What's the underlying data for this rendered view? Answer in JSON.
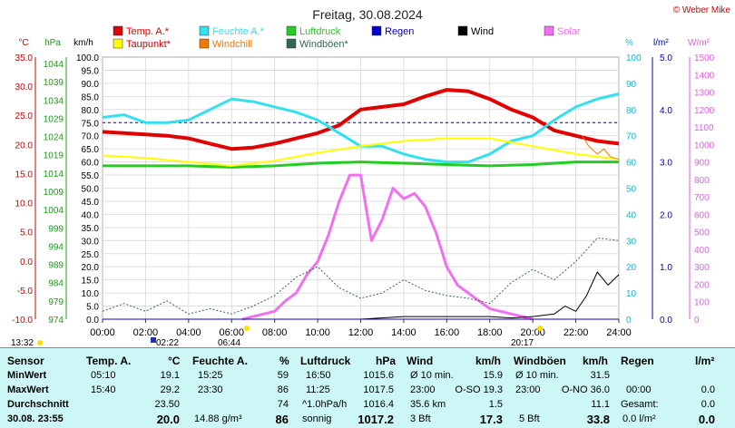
{
  "header": {
    "title": "Freitag, 30.08.2024",
    "credit": "© Weber Mike"
  },
  "legend": [
    {
      "label": "Temp. A.*",
      "color": "#e00000"
    },
    {
      "label": "Feuchte A.*",
      "color": "#33e0f0"
    },
    {
      "label": "Luftdruck",
      "color": "#22cc22"
    },
    {
      "label": "Regen",
      "color": "#0000cc"
    },
    {
      "label": "Wind",
      "color": "#000000"
    },
    {
      "label": "Solar",
      "color": "#f070f0"
    },
    {
      "label": "Taupunkt*",
      "color": "#ffff00"
    },
    {
      "label": "Windchill",
      "color": "#f07800"
    },
    {
      "label": "Windböen*",
      "color": "#336655"
    }
  ],
  "axes": {
    "unit_temp": "°C",
    "unit_hpa": "hPa",
    "unit_kmh": "km/h",
    "unit_pct": "%",
    "unit_rain": "l/m²",
    "unit_solar": "W/m²",
    "temp_ticks": [
      "35.0",
      "30.0",
      "25.0",
      "20.0",
      "15.0",
      "10.0",
      "5.0",
      "0.0",
      "-5.0",
      "-10.0"
    ],
    "hpa_ticks": [
      "1044",
      "1039",
      "1034",
      "1029",
      "1024",
      "1019",
      "1014",
      "1009",
      "1004",
      "999",
      "994",
      "989",
      "984",
      "979",
      "974"
    ],
    "kmh_ticks": [
      "100.0",
      "95.0",
      "90.0",
      "85.0",
      "80.0",
      "75.0",
      "70.0",
      "65.0",
      "60.0",
      "55.0",
      "50.0",
      "45.0",
      "40.0",
      "35.0",
      "30.0",
      "25.0",
      "20.0",
      "15.0",
      "10.0",
      "5.0",
      "0.0"
    ],
    "pct_ticks": [
      "100",
      "90",
      "80",
      "70",
      "60",
      "50",
      "40",
      "30",
      "20",
      "10",
      "0"
    ],
    "rain_ticks": [
      "5.0",
      "4.0",
      "3.0",
      "2.0",
      "1.0",
      "0.0"
    ],
    "solar_ticks": [
      "1500",
      "1400",
      "1300",
      "1200",
      "1100",
      "1000",
      "900",
      "800",
      "700",
      "600",
      "500",
      "400",
      "300",
      "200",
      "100",
      "0"
    ],
    "time_ticks": [
      "00:00",
      "02:00",
      "04:00",
      "06:00",
      "08:00",
      "10:00",
      "12:00",
      "14:00",
      "16:00",
      "18:00",
      "20:00",
      "22:00",
      "24:00"
    ]
  },
  "sun": {
    "moonrise": "13:32",
    "moonset": "02:22",
    "sunrise": "06:44",
    "sunset": "20:17"
  },
  "chart_data": {
    "type": "line",
    "x_unit": "hours",
    "xlim": [
      0,
      24
    ],
    "series": [
      {
        "name": "Temp. A.*",
        "axis": "kmh",
        "color": "#e00000",
        "width": 4,
        "x": [
          0,
          1,
          2,
          3,
          4,
          5,
          6,
          7,
          8,
          9,
          10,
          11,
          12,
          13,
          14,
          15,
          16,
          17,
          18,
          19,
          20,
          21,
          22,
          23,
          24
        ],
        "y": [
          71.5,
          71,
          70.5,
          70,
          69,
          67,
          65,
          65.5,
          67,
          69,
          71,
          74,
          80,
          81,
          82,
          85,
          87.5,
          87,
          84,
          80,
          77,
          72,
          70,
          68,
          67
        ]
      },
      {
        "name": "Feuchte A.*",
        "axis": "kmh",
        "color": "#33e0f0",
        "width": 3,
        "x": [
          0,
          1,
          2,
          3,
          4,
          5,
          6,
          7,
          8,
          9,
          10,
          11,
          12,
          13,
          14,
          15,
          16,
          17,
          18,
          19,
          20,
          21,
          22,
          23,
          24
        ],
        "y": [
          77,
          78,
          75,
          75,
          76,
          80,
          84,
          83,
          81,
          79,
          76,
          71,
          66,
          66,
          63,
          61,
          60,
          60,
          63,
          68,
          70,
          76,
          81,
          84,
          86
        ]
      },
      {
        "name": "Luftdruck",
        "axis": "kmh",
        "color": "#22cc22",
        "width": 3,
        "x": [
          0,
          2,
          4,
          6,
          8,
          10,
          12,
          14,
          16,
          18,
          20,
          22,
          24
        ],
        "y": [
          58.5,
          58.5,
          58.5,
          58,
          58.5,
          59.5,
          60,
          59.5,
          59,
          58.5,
          59,
          60,
          60
        ]
      },
      {
        "name": "Taupunkt*",
        "axis": "kmh",
        "color": "#ffff00",
        "width": 2,
        "x": [
          0,
          2,
          4,
          6,
          8,
          10,
          12,
          14,
          16,
          18,
          20,
          22,
          24
        ],
        "y": [
          62.5,
          61.5,
          60,
          58.5,
          60.5,
          63.5,
          66,
          68,
          69,
          69,
          66,
          63,
          61
        ]
      },
      {
        "name": "Windchill",
        "axis": "kmh",
        "color": "#f07800",
        "width": 1,
        "x": [
          22.3,
          22.6,
          23,
          23.3,
          23.6,
          24
        ],
        "y": [
          70,
          66,
          63,
          65,
          62,
          61
        ]
      },
      {
        "name": "Solar",
        "axis": "kmh",
        "color": "#f070f0",
        "width": 3,
        "x": [
          6.5,
          7,
          7.5,
          8,
          8.5,
          9,
          9.5,
          10,
          10.5,
          11,
          11.5,
          12,
          12.5,
          13,
          13.5,
          14,
          14.5,
          15,
          15.5,
          16,
          16.5,
          17,
          17.5,
          18,
          18.5,
          19,
          19.5,
          20
        ],
        "y": [
          0,
          1,
          2,
          3,
          7,
          10,
          17,
          22,
          32,
          45,
          55,
          55,
          30,
          38,
          50,
          46,
          48,
          43,
          33,
          20,
          13,
          10,
          7,
          4,
          3,
          2,
          1,
          0
        ]
      },
      {
        "name": "Windböen*",
        "axis": "kmh",
        "color": "#336655",
        "width": 1,
        "dash": true,
        "x": [
          0,
          1,
          2,
          3,
          4,
          5,
          6,
          7,
          8,
          9,
          10,
          11,
          12,
          13,
          14,
          15,
          16,
          17,
          18,
          19,
          20,
          21,
          22,
          23,
          24
        ],
        "y": [
          3,
          6,
          3,
          7,
          2,
          4,
          2,
          5,
          9,
          16,
          20,
          12,
          8,
          10,
          15,
          11,
          9,
          8,
          6,
          14,
          19,
          15,
          22,
          31,
          30
        ]
      },
      {
        "name": "Wind",
        "axis": "kmh",
        "color": "#000000",
        "width": 1,
        "x": [
          0,
          4,
          8,
          12,
          14,
          16,
          18,
          19,
          20,
          21,
          21.5,
          22,
          22.5,
          23,
          23.5,
          24
        ],
        "y": [
          0,
          0,
          0,
          0,
          1,
          1,
          1,
          0.5,
          1,
          2,
          5,
          3,
          9,
          18,
          13,
          17
        ]
      },
      {
        "name": "Regen",
        "axis": "rain",
        "color": "#0000cc",
        "width": 1,
        "x": [
          0,
          24
        ],
        "y": [
          0,
          0
        ]
      }
    ]
  },
  "table": {
    "headers": {
      "sensor": "Sensor",
      "temp": "Temp. A.",
      "temp_unit": "°C",
      "hum": "Feuchte A.",
      "hum_unit": "%",
      "press": "Luftdruck",
      "press_unit": "hPa",
      "wind": "Wind",
      "wind_unit": "km/h",
      "gust": "Windböen",
      "gust_unit": "km/h",
      "rain": "Regen",
      "rain_unit": "l/m²"
    },
    "rows": {
      "min_label": "MinWert",
      "max_label": "MaxWert",
      "avg_label": "Durchschnitt",
      "last_label": "30.08. 23:55"
    },
    "temp": {
      "min_time": "05:10",
      "min": "19.1",
      "max_time": "15:40",
      "max": "29.2",
      "avg": "23.50",
      "cur": "20.0"
    },
    "hum": {
      "min_time": "15:25",
      "min": "59",
      "max_time": "23:30",
      "max": "86",
      "avg": "74",
      "abs": "14.88 g/m³",
      "cur": "86"
    },
    "press": {
      "min_time": "16:50",
      "min": "1015.6",
      "max_time": "11:25",
      "max": "1017.5",
      "trend": "^1.0hPa/h",
      "avg": "1016.4",
      "cond": "sonnig",
      "cur": "1017.2"
    },
    "wind": {
      "avg10": "Ø 10 min.",
      "avg10_val": "15.9",
      "max_time": "23:00",
      "max_dir": "O-SO 19.3",
      "dist": "35.6 km",
      "dist_val": "1.5",
      "bft": "3 Bft",
      "cur": "17.3"
    },
    "gust": {
      "avg10": "Ø 10 min.",
      "avg10_val": "31.5",
      "max_time": "23:00",
      "max_dir": "O-NO 36.0",
      "avg": "11.1",
      "bft": "5 Bft",
      "cur": "33.8"
    },
    "rain": {
      "time": "00:00",
      "val1": "0.0",
      "total_label": "Gesamt:",
      "total": "0.0",
      "rate": "0.0 l/m²",
      "cur": "0.0"
    }
  }
}
